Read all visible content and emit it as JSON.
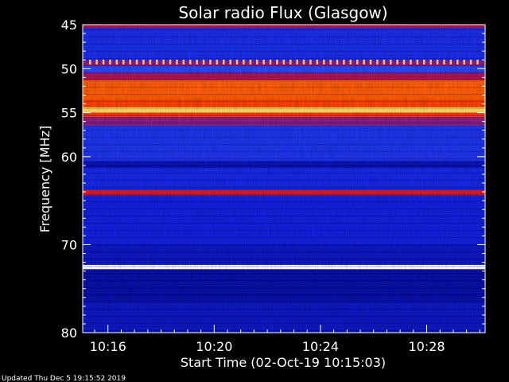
{
  "chart_data": {
    "type": "heatmap",
    "title": "Solar radio Flux (Glasgow)",
    "xlabel": "Start Time (02-Oct-19 10:15:03)",
    "ylabel": "Frequency [MHz]",
    "x_ticks": [
      "10:16",
      "10:20",
      "10:24",
      "10:28"
    ],
    "x_tick_minutes": [
      16,
      20,
      24,
      28
    ],
    "x_range_minutes": [
      15.05,
      30.2
    ],
    "y_ticks": [
      45,
      50,
      55,
      60,
      70,
      80
    ],
    "y_range": [
      45,
      80
    ],
    "colormap": [
      "#00007a",
      "#1020e0",
      "#3050ff",
      "#a01060",
      "#ff2000",
      "#ff8000",
      "#ffff80",
      "#ffffff"
    ],
    "bands": [
      {
        "f0": 45.0,
        "f1": 45.4,
        "level": 0.45
      },
      {
        "f0": 45.4,
        "f1": 49.1,
        "level": 0.18
      },
      {
        "f0": 49.1,
        "f1": 49.7,
        "level": 0.4
      },
      {
        "f0": 49.7,
        "f1": 50.5,
        "level": 0.25
      },
      {
        "f0": 50.5,
        "f1": 51.3,
        "level": 0.45
      },
      {
        "f0": 51.3,
        "f1": 53.5,
        "level": 0.66
      },
      {
        "f0": 53.5,
        "f1": 54.4,
        "level": 0.62
      },
      {
        "f0": 54.4,
        "f1": 55.0,
        "level": 0.82
      },
      {
        "f0": 55.0,
        "f1": 55.5,
        "level": 0.6
      },
      {
        "f0": 55.5,
        "f1": 56.5,
        "level": 0.4
      },
      {
        "f0": 56.5,
        "f1": 60.5,
        "level": 0.2
      },
      {
        "f0": 60.5,
        "f1": 61.3,
        "level": 0.08
      },
      {
        "f0": 61.3,
        "f1": 63.8,
        "level": 0.16
      },
      {
        "f0": 63.8,
        "f1": 64.4,
        "level": 0.52
      },
      {
        "f0": 64.4,
        "f1": 70.0,
        "level": 0.14
      },
      {
        "f0": 70.0,
        "f1": 72.3,
        "level": 0.1
      },
      {
        "f0": 72.3,
        "f1": 72.8,
        "level": 1.0
      },
      {
        "f0": 72.8,
        "f1": 76.5,
        "level": 0.06
      },
      {
        "f0": 76.5,
        "f1": 80.0,
        "level": 0.1
      }
    ]
  },
  "footer": {
    "updated": "Updated Thu Dec  5 19:15:52 2019"
  }
}
